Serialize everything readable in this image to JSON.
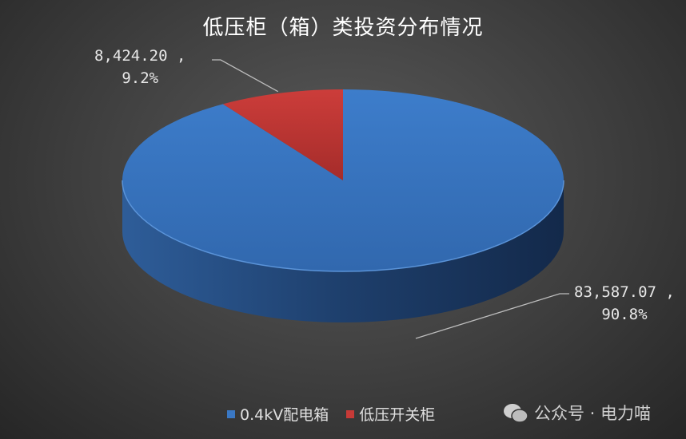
{
  "chart_data": {
    "type": "pie",
    "style": "3d",
    "title": "低压柜（箱）类投资分布情况",
    "categories": [
      "0.4kV配电箱",
      "低压开关柜"
    ],
    "values": [
      83587.07,
      8424.2
    ],
    "percent_labels": [
      "90.8%",
      "9.2%"
    ],
    "value_labels": [
      "83,587.07",
      "8,424.20"
    ],
    "colors": [
      "#3a78c4",
      "#c73a37"
    ],
    "legend": "bottom"
  },
  "watermark": "公众号 · 电力喵"
}
